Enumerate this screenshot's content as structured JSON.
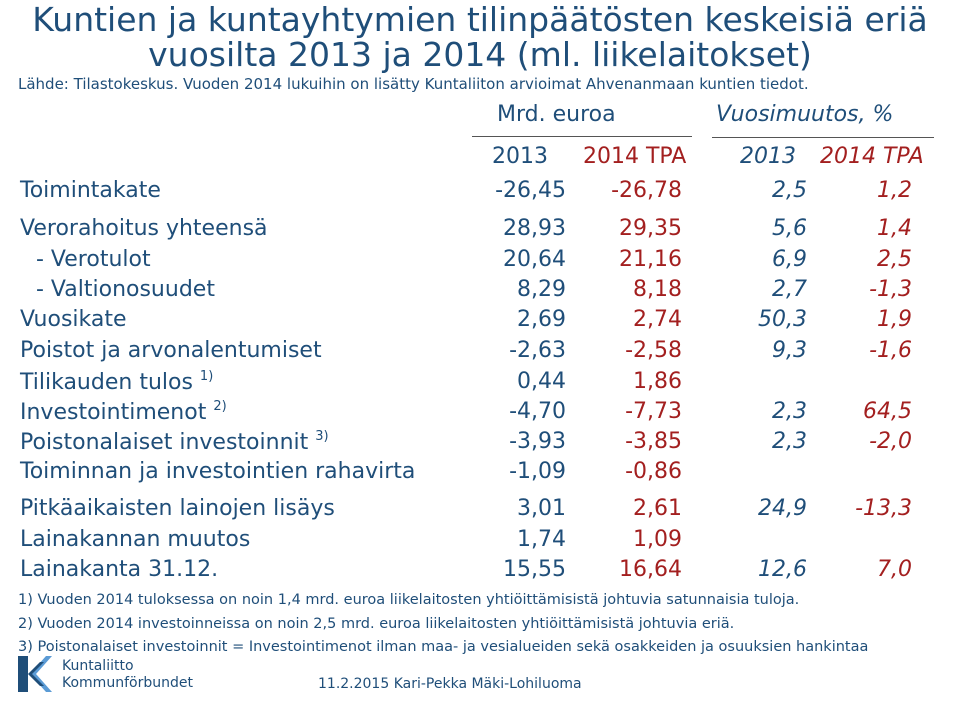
{
  "title": {
    "line1": "Kuntien ja kuntayhtymien  tilinpäätösten keskeisiä eriä",
    "line2": "vuosilta 2013 ja 2014 (ml. liikelaitokset)"
  },
  "source": "Lähde: Tilastokeskus. Vuoden 2014 lukuihin on lisätty Kuntaliiton arvioimat Ahvenanmaan kuntien tiedot.",
  "header": {
    "mrd": "Mrd. euroa",
    "vuosimuutos": "Vuosimuutos, %",
    "y2013": "2013",
    "y2014": "2014 TPA",
    "c2013": "2013",
    "c2014": "2014 TPA"
  },
  "rows": [
    {
      "label": "Toimintakate",
      "sup": "",
      "v2013": "-26,45",
      "v2014": "-26,78",
      "c2013": "2,5",
      "c2014": "1,2"
    },
    {
      "label": "Verorahoitus yhteensä",
      "sup": "",
      "v2013": "28,93",
      "v2014": "29,35",
      "c2013": "5,6",
      "c2014": "1,4"
    },
    {
      "label": "- Verotulot",
      "sup": "",
      "v2013": "20,64",
      "v2014": "21,16",
      "c2013": "6,9",
      "c2014": "2,5"
    },
    {
      "label": "- Valtionosuudet",
      "sup": "",
      "v2013": "8,29",
      "v2014": "8,18",
      "c2013": "2,7",
      "c2014": "-1,3"
    },
    {
      "label": "Vuosikate",
      "sup": "",
      "v2013": "2,69",
      "v2014": "2,74",
      "c2013": "50,3",
      "c2014": "1,9"
    },
    {
      "label": "Poistot ja arvonalentumiset",
      "sup": "",
      "v2013": "-2,63",
      "v2014": "-2,58",
      "c2013": "9,3",
      "c2014": "-1,6"
    },
    {
      "label": "Tilikauden tulos ",
      "sup": "1)",
      "v2013": "0,44",
      "v2014": "1,86",
      "c2013": "",
      "c2014": ""
    },
    {
      "label": "Investointimenot ",
      "sup": "2)",
      "v2013": "-4,70",
      "v2014": "-7,73",
      "c2013": "2,3",
      "c2014": "64,5"
    },
    {
      "label": "Poistonalaiset investoinnit ",
      "sup": "3)",
      "v2013": "-3,93",
      "v2014": "-3,85",
      "c2013": "2,3",
      "c2014": "-2,0"
    },
    {
      "label": "Toiminnan ja investointien rahavirta",
      "sup": "",
      "v2013": "-1,09",
      "v2014": "-0,86",
      "c2013": "",
      "c2014": ""
    },
    {
      "label": "Pitkäaikaisten lainojen lisäys",
      "sup": "",
      "v2013": "3,01",
      "v2014": "2,61",
      "c2013": "24,9",
      "c2014": "-13,3"
    },
    {
      "label": "Lainakannan muutos",
      "sup": "",
      "v2013": "1,74",
      "v2014": "1,09",
      "c2013": "",
      "c2014": ""
    },
    {
      "label": "Lainakanta 31.12.",
      "sup": "",
      "v2013": "15,55",
      "v2014": "16,64",
      "c2013": "12,6",
      "c2014": "7,0"
    }
  ],
  "notes": [
    "1) Vuoden 2014 tuloksessa on noin 1,4 mrd. euroa liikelaitosten yhtiöittämisistä johtuvia satunnaisia tuloja.",
    "2) Vuoden 2014 investoinneissa on noin 2,5 mrd. euroa liikelaitosten yhtiöittämisistä johtuvia eriä.",
    "3) Poistonalaiset investoinnit = Investointimenot ilman maa- ja vesialueiden sekä osakkeiden ja osuuksien hankintaa"
  ],
  "logo": {
    "line1": "Kuntaliitto",
    "line2": "Kommunförbundet",
    "icon": "kuntaliitto-logo-icon"
  },
  "footer": "11.2.2015 Kari-Pekka Mäki-Lohiluoma",
  "colors": {
    "text": "#1f4e79",
    "accent": "#a31f1f"
  }
}
